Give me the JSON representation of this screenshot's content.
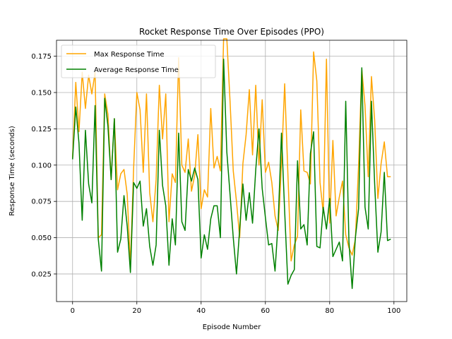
{
  "chart_data": {
    "type": "line",
    "title": "Rocket Response Time Over Episodes (PPO)",
    "xlabel": "Episode Number",
    "ylabel": "Response Time (seconds)",
    "xlim": [
      -5,
      104
    ],
    "ylim": [
      0.006,
      0.186
    ],
    "xticks": [
      0,
      20,
      40,
      60,
      80,
      100
    ],
    "yticks": [
      0.025,
      0.05,
      0.075,
      0.1,
      0.125,
      0.15,
      0.175
    ],
    "ytick_labels": [
      "0.025",
      "0.050",
      "0.075",
      "0.100",
      "0.125",
      "0.150",
      "0.175"
    ],
    "grid": true,
    "legend_position": "upper-left",
    "x": [
      0,
      1,
      2,
      3,
      4,
      5,
      6,
      7,
      8,
      9,
      10,
      11,
      12,
      13,
      14,
      15,
      16,
      17,
      18,
      19,
      20,
      21,
      22,
      23,
      24,
      25,
      26,
      27,
      28,
      29,
      30,
      31,
      32,
      33,
      34,
      35,
      36,
      37,
      38,
      39,
      40,
      41,
      42,
      43,
      44,
      45,
      46,
      47,
      48,
      49,
      50,
      51,
      52,
      53,
      54,
      55,
      56,
      57,
      58,
      59,
      60,
      61,
      62,
      63,
      64,
      65,
      66,
      67,
      68,
      69,
      70,
      71,
      72,
      73,
      74,
      75,
      76,
      77,
      78,
      79,
      80,
      81,
      82,
      83,
      84,
      85,
      86,
      87,
      88,
      89,
      90,
      91,
      92,
      93,
      94,
      95,
      96,
      97,
      98,
      99
    ],
    "series": [
      {
        "name": "Max Response Time",
        "color": "#ffa500",
        "values": [
          0.105,
          0.157,
          0.123,
          0.164,
          0.139,
          0.162,
          0.149,
          0.164,
          0.05,
          0.052,
          0.149,
          0.135,
          0.09,
          0.132,
          0.083,
          0.094,
          0.097,
          0.08,
          0.031,
          0.098,
          0.15,
          0.138,
          0.095,
          0.149,
          0.081,
          0.061,
          0.09,
          0.155,
          0.118,
          0.149,
          0.061,
          0.094,
          0.088,
          0.174,
          0.1,
          0.095,
          0.118,
          0.082,
          0.093,
          0.121,
          0.07,
          0.083,
          0.078,
          0.139,
          0.098,
          0.106,
          0.096,
          0.187,
          0.187,
          0.144,
          0.096,
          0.075,
          0.05,
          0.101,
          0.121,
          0.152,
          0.107,
          0.155,
          0.1,
          0.145,
          0.095,
          0.102,
          0.088,
          0.065,
          0.055,
          0.101,
          0.156,
          0.094,
          0.034,
          0.045,
          0.051,
          0.138,
          0.096,
          0.095,
          0.087,
          0.178,
          0.158,
          0.088,
          0.067,
          0.173,
          0.06,
          0.117,
          0.065,
          0.078,
          0.089,
          0.052,
          0.043,
          0.038,
          0.049,
          0.1,
          0.166,
          0.141,
          0.092,
          0.161,
          0.131,
          0.077,
          0.101,
          0.116,
          0.092,
          0.092
        ]
      },
      {
        "name": "Average Response Time",
        "color": "#008000",
        "values": [
          0.104,
          0.14,
          0.115,
          0.062,
          0.124,
          0.087,
          0.074,
          0.141,
          0.049,
          0.027,
          0.146,
          0.127,
          0.09,
          0.132,
          0.04,
          0.049,
          0.079,
          0.058,
          0.026,
          0.088,
          0.084,
          0.089,
          0.058,
          0.07,
          0.044,
          0.031,
          0.045,
          0.124,
          0.086,
          0.072,
          0.031,
          0.063,
          0.045,
          0.122,
          0.061,
          0.055,
          0.097,
          0.089,
          0.098,
          0.09,
          0.036,
          0.052,
          0.042,
          0.063,
          0.072,
          0.072,
          0.05,
          0.173,
          0.109,
          0.08,
          0.05,
          0.025,
          0.056,
          0.087,
          0.062,
          0.081,
          0.06,
          0.097,
          0.125,
          0.084,
          0.064,
          0.045,
          0.046,
          0.027,
          0.062,
          0.122,
          0.068,
          0.018,
          0.024,
          0.028,
          0.103,
          0.056,
          0.059,
          0.045,
          0.108,
          0.123,
          0.044,
          0.043,
          0.071,
          0.056,
          0.077,
          0.037,
          0.042,
          0.047,
          0.034,
          0.144,
          0.047,
          0.015,
          0.05,
          0.07,
          0.167,
          0.071,
          0.056,
          0.144,
          0.087,
          0.04,
          0.054,
          0.095,
          0.048,
          0.049
        ]
      }
    ]
  }
}
